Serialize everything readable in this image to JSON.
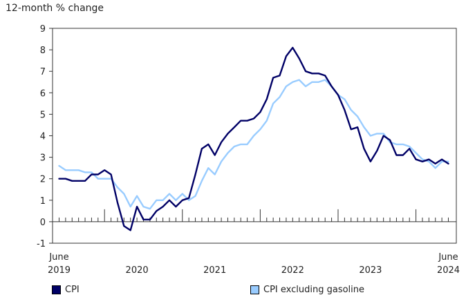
{
  "chart_data": {
    "type": "line",
    "ylabel": "12-month % change",
    "ylim": [
      -1,
      9
    ],
    "yticks": [
      -1,
      0,
      1,
      2,
      3,
      4,
      5,
      6,
      7,
      8,
      9
    ],
    "x_start": "2019-06",
    "x_end": "2024-06",
    "x_labels": [
      {
        "month": "2019-06",
        "line1": "June",
        "line2": "2019"
      },
      {
        "month": "2020-06",
        "line1": "",
        "line2": "2020"
      },
      {
        "month": "2021-06",
        "line1": "",
        "line2": "2021"
      },
      {
        "month": "2022-06",
        "line1": "",
        "line2": "2022"
      },
      {
        "month": "2023-06",
        "line1": "",
        "line2": "2023"
      },
      {
        "month": "2024-06",
        "line1": "June",
        "line2": "2024"
      }
    ],
    "series": [
      {
        "name": "CPI",
        "color": "#000066",
        "values": [
          2.0,
          2.0,
          1.9,
          1.9,
          1.9,
          2.2,
          2.2,
          2.4,
          2.2,
          0.9,
          -0.2,
          -0.4,
          0.7,
          0.1,
          0.1,
          0.5,
          0.7,
          1.0,
          0.7,
          1.0,
          1.1,
          2.2,
          3.4,
          3.6,
          3.1,
          3.7,
          4.1,
          4.4,
          4.7,
          4.7,
          4.8,
          5.1,
          5.7,
          6.7,
          6.8,
          7.7,
          8.1,
          7.6,
          7.0,
          6.9,
          6.9,
          6.8,
          6.3,
          5.9,
          5.2,
          4.3,
          4.4,
          3.4,
          2.8,
          3.3,
          4.0,
          3.8,
          3.1,
          3.1,
          3.4,
          2.9,
          2.8,
          2.9,
          2.7,
          2.9,
          2.7
        ]
      },
      {
        "name": "CPI excluding gasoline",
        "color": "#99ccff",
        "values": [
          2.6,
          2.4,
          2.4,
          2.4,
          2.3,
          2.3,
          2.0,
          2.0,
          2.0,
          1.6,
          1.3,
          0.7,
          1.2,
          0.7,
          0.6,
          1.0,
          1.0,
          1.3,
          1.0,
          1.3,
          1.0,
          1.2,
          1.9,
          2.5,
          2.2,
          2.8,
          3.2,
          3.5,
          3.6,
          3.6,
          4.0,
          4.3,
          4.7,
          5.5,
          5.8,
          6.3,
          6.5,
          6.6,
          6.3,
          6.5,
          6.5,
          6.6,
          6.3,
          5.9,
          5.7,
          5.2,
          4.9,
          4.4,
          4.0,
          4.1,
          4.1,
          3.7,
          3.6,
          3.6,
          3.5,
          3.2,
          2.9,
          2.8,
          2.5,
          2.8,
          2.8
        ]
      }
    ],
    "legend_position": "bottom",
    "grid": false
  }
}
